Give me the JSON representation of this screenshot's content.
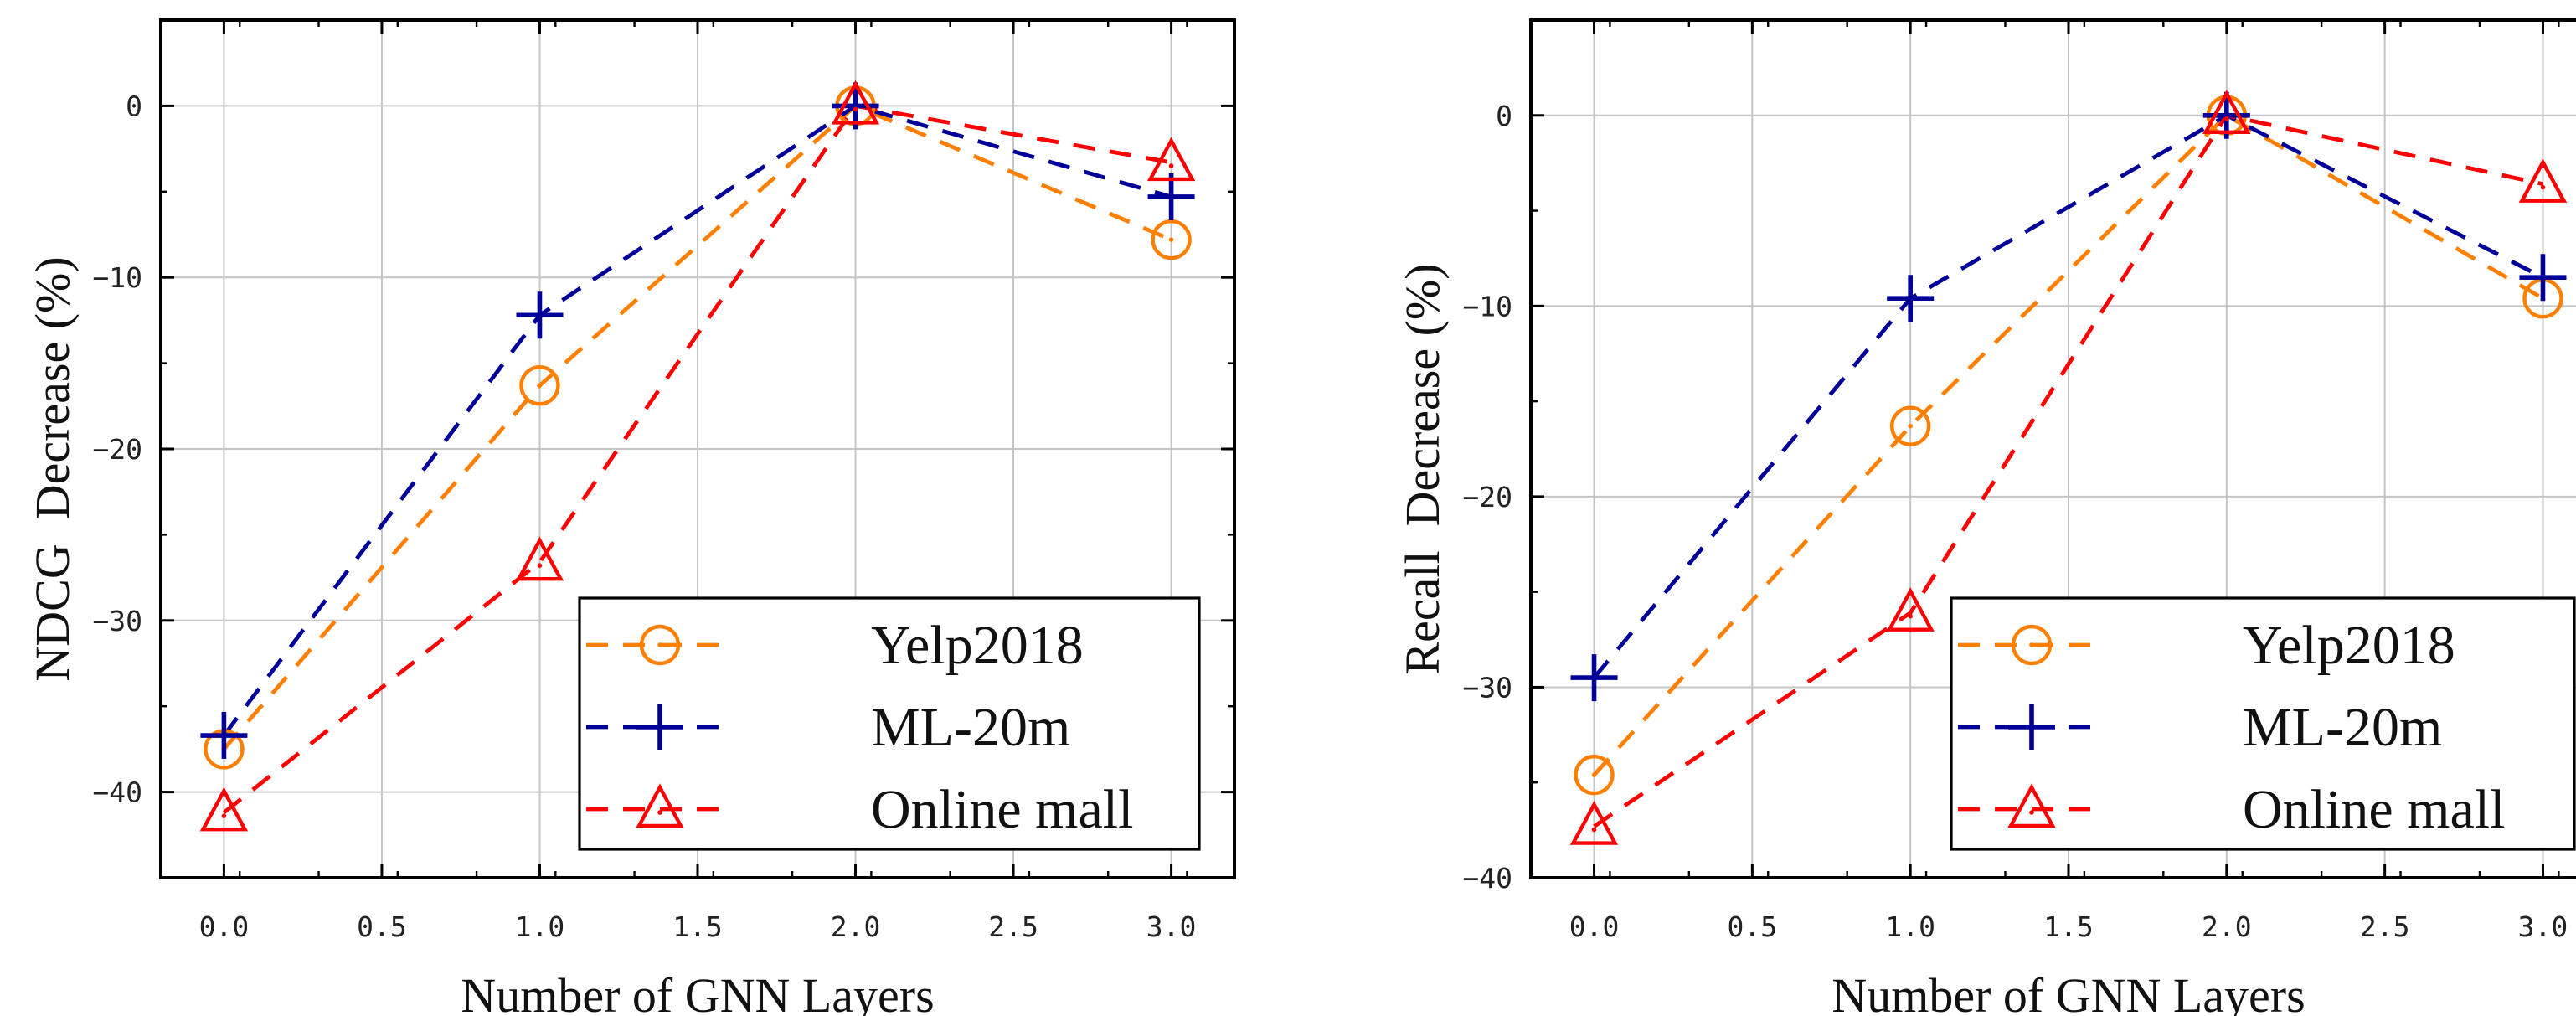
{
  "chart_data": [
    {
      "type": "line",
      "title": "",
      "xlabel": "Number of GNN Layers",
      "ylabel": "NDCG  Decrease (%)",
      "x": [
        0,
        1,
        2,
        3
      ],
      "xlim": [
        -0.2,
        3.2
      ],
      "ylim": [
        -45,
        5
      ],
      "xticks": [
        0.0,
        0.5,
        1.0,
        1.5,
        2.0,
        2.5,
        3.0
      ],
      "xtick_labels": [
        "0.0",
        "0.5",
        "1.0",
        "1.5",
        "2.0",
        "2.5",
        "3.0"
      ],
      "yticks": [
        0,
        -10,
        -20,
        -30,
        -40
      ],
      "ytick_labels": [
        "0",
        "−10",
        "−20",
        "−30",
        "−40"
      ],
      "grid": true,
      "legend_position": "bottom-right",
      "series": [
        {
          "name": "Yelp2018",
          "values": [
            -37.5,
            -16.3,
            0,
            -7.8
          ],
          "color": "#ff8000",
          "marker": "circle"
        },
        {
          "name": "ML-20m",
          "values": [
            -36.7,
            -12.2,
            0,
            -5.3
          ],
          "color": "#000099",
          "marker": "plus"
        },
        {
          "name": "Online mall",
          "values": [
            -41.2,
            -26.6,
            0,
            -3.3
          ],
          "color": "#ff0000",
          "marker": "triangle"
        }
      ]
    },
    {
      "type": "line",
      "title": "",
      "xlabel": "Number of GNN Layers",
      "ylabel": "Recall  Decrease (%)",
      "x": [
        0,
        1,
        2,
        3
      ],
      "xlim": [
        -0.2,
        3.2
      ],
      "ylim": [
        -40,
        5
      ],
      "xticks": [
        0.0,
        0.5,
        1.0,
        1.5,
        2.0,
        2.5,
        3.0
      ],
      "xtick_labels": [
        "0.0",
        "0.5",
        "1.0",
        "1.5",
        "2.0",
        "2.5",
        "3.0"
      ],
      "yticks": [
        0,
        -10,
        -20,
        -30,
        -40
      ],
      "ytick_labels": [
        "0",
        "−10",
        "−20",
        "−30",
        "−40"
      ],
      "grid": true,
      "legend_position": "bottom-right",
      "series": [
        {
          "name": "Yelp2018",
          "values": [
            -34.6,
            -16.3,
            0,
            -9.6
          ],
          "color": "#ff8000",
          "marker": "circle"
        },
        {
          "name": "ML-20m",
          "values": [
            -29.5,
            -9.6,
            0,
            -8.5
          ],
          "color": "#000099",
          "marker": "plus"
        },
        {
          "name": "Online mall",
          "values": [
            -37.3,
            -26.1,
            0,
            -3.6
          ],
          "color": "#ff0000",
          "marker": "triangle"
        }
      ]
    }
  ]
}
